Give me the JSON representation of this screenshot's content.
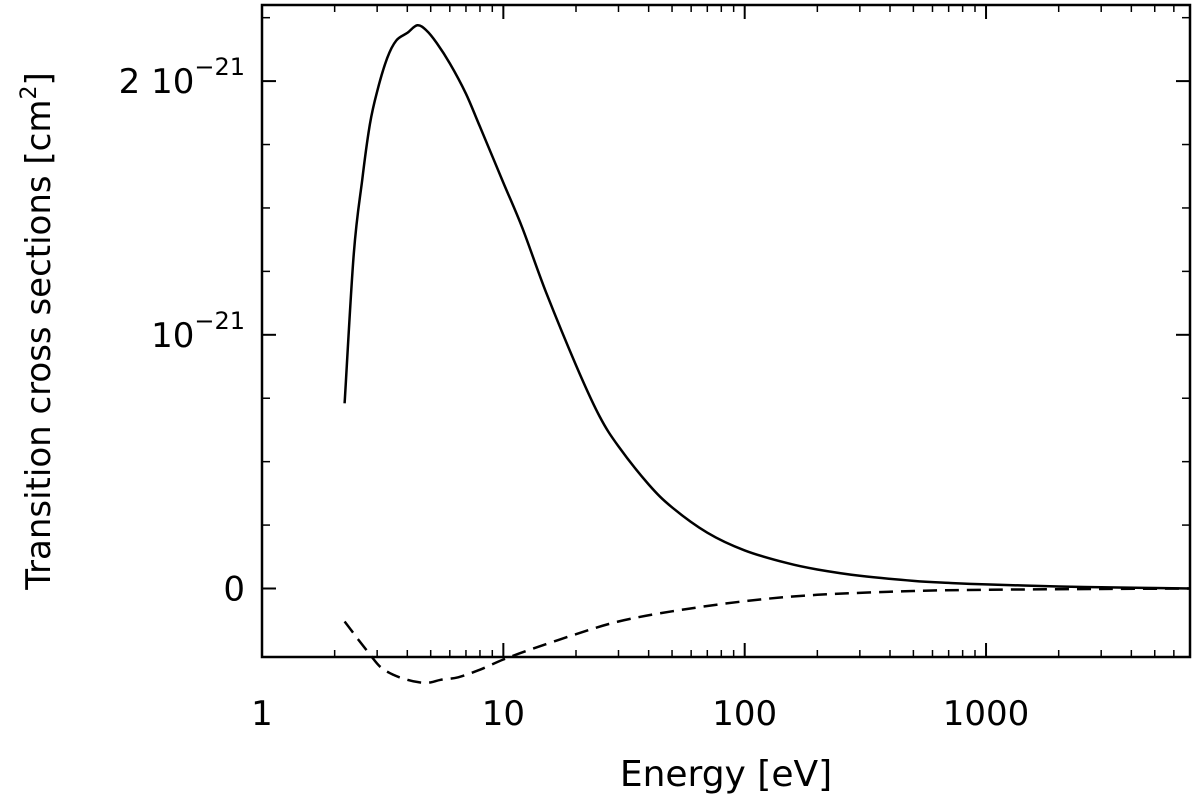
{
  "chart_data": {
    "type": "line",
    "xlabel": "Energy [eV]",
    "ylabel": "Transition cross sections [cm",
    "ylabel_sup": "2",
    "ylabel_close": "]",
    "x_scale": "log",
    "xlim": [
      1,
      7000
    ],
    "ylim": [
      -0.27,
      2.3
    ],
    "x_ticks": [
      {
        "value": 1,
        "label": "1"
      },
      {
        "value": 10,
        "label": "10"
      },
      {
        "value": 100,
        "label": "100"
      },
      {
        "value": 1000,
        "label": "1000"
      }
    ],
    "y_ticks": [
      {
        "value": 0,
        "prefix": "",
        "base": "0",
        "exp": ""
      },
      {
        "value": 1,
        "prefix": "",
        "base": "10",
        "exp": "−21"
      },
      {
        "value": 2,
        "prefix": "2",
        "base": "10",
        "exp": "−21"
      }
    ],
    "y_minor_ticks": [
      -0.5,
      0.25,
      0.5,
      0.75,
      1.25,
      1.5,
      1.75,
      2.25
    ],
    "grid": false,
    "series": [
      {
        "line_style": "solid",
        "x": [
          2.2,
          2.4,
          2.6,
          2.8,
          3.0,
          3.3,
          3.6,
          4.0,
          4.4,
          4.8,
          5.3,
          6,
          7,
          8,
          10,
          12,
          15,
          20,
          25,
          30,
          40,
          50,
          70,
          100,
          150,
          200,
          300,
          500,
          700,
          1000,
          2000,
          3000,
          5000,
          7000
        ],
        "values": [
          0.73,
          1.32,
          1.61,
          1.83,
          1.96,
          2.09,
          2.16,
          2.19,
          2.22,
          2.2,
          2.15,
          2.07,
          1.95,
          1.82,
          1.6,
          1.42,
          1.17,
          0.88,
          0.68,
          0.56,
          0.41,
          0.32,
          0.22,
          0.15,
          0.1,
          0.075,
          0.05,
          0.03,
          0.022,
          0.016,
          0.008,
          0.005,
          0.002,
          0.0
        ]
      },
      {
        "line_style": "dashed",
        "x": [
          2.2,
          2.5,
          2.8,
          3.1,
          3.5,
          4.0,
          4.5,
          5.0,
          5.5,
          6.5,
          8,
          10,
          13,
          20,
          30,
          50,
          100,
          200,
          500,
          1000,
          3000,
          7000
        ],
        "values": [
          -0.13,
          -0.2,
          -0.26,
          -0.31,
          -0.34,
          -0.36,
          -0.37,
          -0.37,
          -0.36,
          -0.35,
          -0.32,
          -0.28,
          -0.24,
          -0.18,
          -0.13,
          -0.09,
          -0.05,
          -0.025,
          -0.01,
          -0.005,
          -0.002,
          0.0
        ]
      }
    ]
  }
}
